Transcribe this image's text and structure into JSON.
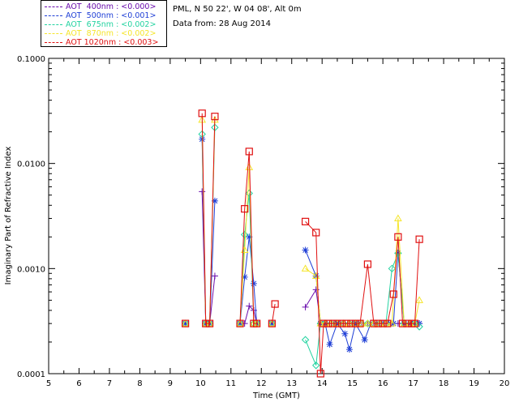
{
  "header": {
    "site": "PML, N 50 22', W 04 08', Alt 0m",
    "date": "Data from: 28 Aug 2014"
  },
  "legend": [
    {
      "label": "AOT  400nm : <0.000>",
      "color": "#6a0dad"
    },
    {
      "label": "AOT  500nm : <0.001>",
      "color": "#1f3fd6"
    },
    {
      "label": "AOT  675nm : <0.002>",
      "color": "#22d3a0"
    },
    {
      "label": "AOT  870nm : <0.002>",
      "color": "#f5e52a"
    },
    {
      "label": "AOT 1020nm : <0.003>",
      "color": "#e01010"
    }
  ],
  "chart_data": {
    "type": "line",
    "xlabel": "Time (GMT)",
    "ylabel": "Imaginary Part of Refractive Index",
    "xlim": [
      5,
      20
    ],
    "ylim": [
      0.0001,
      0.1
    ],
    "yscale": "log",
    "xticks": [
      "5",
      "6",
      "7",
      "8",
      "9",
      "10",
      "11",
      "12",
      "13",
      "14",
      "15",
      "16",
      "17",
      "18",
      "19",
      "20"
    ],
    "yticks": [
      {
        "value": 0.0001,
        "label": "0.0001"
      },
      {
        "value": 0.001,
        "label": "0.0010"
      },
      {
        "value": 0.01,
        "label": "0.0100"
      },
      {
        "value": 0.1,
        "label": "0.1000"
      }
    ],
    "grid": false,
    "series": [
      {
        "name": "AOT  400nm",
        "color": "#6a0dad",
        "marker": "plus",
        "segments": [
          [
            [
              9.5,
              0.0003
            ]
          ],
          [
            [
              10.05,
              0.0054
            ],
            [
              10.17,
              0.0003
            ],
            [
              10.3,
              0.0003
            ],
            [
              10.47,
              0.00085
            ]
          ],
          [
            [
              11.3,
              0.0003
            ],
            [
              11.45,
              0.0003
            ],
            [
              11.6,
              0.00044
            ],
            [
              11.75,
              0.0004
            ],
            [
              11.85,
              0.0003
            ]
          ],
          [
            [
              12.35,
              0.0003
            ]
          ],
          [
            [
              13.45,
              0.00043
            ],
            [
              13.8,
              0.00063
            ],
            [
              13.95,
              0.0003
            ],
            [
              14.1,
              0.0003
            ],
            [
              14.3,
              0.0003
            ],
            [
              14.5,
              0.0003
            ],
            [
              14.7,
              0.0003
            ],
            [
              14.9,
              0.0003
            ],
            [
              15.1,
              0.0003
            ],
            [
              15.3,
              0.0003
            ],
            [
              15.5,
              0.0003
            ],
            [
              15.7,
              0.0003
            ],
            [
              15.9,
              0.0003
            ],
            [
              16.1,
              0.0003
            ],
            [
              16.3,
              0.0003
            ],
            [
              16.5,
              0.0003
            ],
            [
              16.7,
              0.0003
            ],
            [
              16.9,
              0.0003
            ],
            [
              17.05,
              0.0003
            ],
            [
              17.2,
              0.0003
            ]
          ]
        ]
      },
      {
        "name": "AOT  500nm",
        "color": "#1f3fd6",
        "marker": "star",
        "segments": [
          [
            [
              9.5,
              0.0003
            ]
          ],
          [
            [
              10.05,
              0.017
            ],
            [
              10.17,
              0.0003
            ],
            [
              10.3,
              0.0003
            ],
            [
              10.47,
              0.0044
            ]
          ],
          [
            [
              11.3,
              0.0003
            ],
            [
              11.45,
              0.00083
            ],
            [
              11.6,
              0.002
            ],
            [
              11.75,
              0.00072
            ],
            [
              11.85,
              0.0003
            ]
          ],
          [
            [
              12.35,
              0.0003
            ]
          ],
          [
            [
              13.45,
              0.0015
            ],
            [
              13.8,
              0.00085
            ],
            [
              13.95,
              0.0003
            ],
            [
              14.1,
              0.0003
            ],
            [
              14.25,
              0.00019
            ],
            [
              14.5,
              0.0003
            ],
            [
              14.75,
              0.00024
            ],
            [
              14.9,
              0.00017
            ],
            [
              15.1,
              0.0003
            ],
            [
              15.4,
              0.00021
            ],
            [
              15.6,
              0.0003
            ],
            [
              15.8,
              0.0003
            ],
            [
              16,
              0.0003
            ],
            [
              16.2,
              0.0003
            ],
            [
              16.35,
              0.0003
            ],
            [
              16.5,
              0.0014
            ],
            [
              16.7,
              0.0003
            ],
            [
              16.9,
              0.0003
            ],
            [
              17.05,
              0.0003
            ],
            [
              17.2,
              0.0003
            ]
          ]
        ]
      },
      {
        "name": "AOT  675nm",
        "color": "#22d3a0",
        "marker": "diamond",
        "segments": [
          [
            [
              9.5,
              0.0003
            ]
          ],
          [
            [
              10.05,
              0.019
            ],
            [
              10.17,
              0.0003
            ],
            [
              10.3,
              0.0003
            ],
            [
              10.47,
              0.022
            ]
          ],
          [
            [
              11.3,
              0.0003
            ],
            [
              11.45,
              0.0021
            ],
            [
              11.6,
              0.0052
            ],
            [
              11.75,
              0.0003
            ],
            [
              11.85,
              0.0003
            ]
          ],
          [
            [
              12.35,
              0.0003
            ]
          ],
          [
            [
              13.45,
              0.00021
            ],
            [
              13.8,
              0.00012
            ],
            [
              13.95,
              0.0003
            ],
            [
              14.1,
              0.0003
            ],
            [
              14.3,
              0.0003
            ],
            [
              14.5,
              0.0003
            ],
            [
              14.7,
              0.0003
            ],
            [
              14.9,
              0.0003
            ],
            [
              15.1,
              0.0003
            ],
            [
              15.3,
              0.0003
            ],
            [
              15.5,
              0.0003
            ],
            [
              15.7,
              0.0003
            ],
            [
              15.9,
              0.0003
            ],
            [
              16.1,
              0.0003
            ],
            [
              16.3,
              0.001
            ],
            [
              16.5,
              0.0014
            ],
            [
              16.7,
              0.0003
            ],
            [
              16.9,
              0.0003
            ],
            [
              17.05,
              0.0003
            ],
            [
              17.2,
              0.00028
            ]
          ]
        ]
      },
      {
        "name": "AOT  870nm",
        "color": "#f5e52a",
        "marker": "triangle",
        "segments": [
          [
            [
              9.5,
              0.0003
            ]
          ],
          [
            [
              10.05,
              0.026
            ],
            [
              10.17,
              0.0003
            ],
            [
              10.3,
              0.0003
            ],
            [
              10.47,
              0.026
            ]
          ],
          [
            [
              11.3,
              0.0003
            ],
            [
              11.45,
              0.0015
            ],
            [
              11.6,
              0.0092
            ],
            [
              11.75,
              0.0003
            ],
            [
              11.85,
              0.0003
            ]
          ],
          [
            [
              12.35,
              0.0003
            ]
          ],
          [
            [
              13.45,
              0.001
            ],
            [
              13.8,
              0.00085
            ],
            [
              13.95,
              0.0003
            ],
            [
              14.1,
              0.0003
            ],
            [
              14.3,
              0.0003
            ],
            [
              14.5,
              0.0003
            ],
            [
              14.7,
              0.0003
            ],
            [
              14.9,
              0.0003
            ],
            [
              15.1,
              0.0003
            ],
            [
              15.3,
              0.0003
            ],
            [
              15.5,
              0.0003
            ],
            [
              15.7,
              0.0003
            ],
            [
              15.9,
              0.0003
            ],
            [
              16.1,
              0.0003
            ],
            [
              16.3,
              0.0003
            ],
            [
              16.5,
              0.003
            ],
            [
              16.7,
              0.0003
            ],
            [
              16.9,
              0.0003
            ],
            [
              17.05,
              0.0003
            ],
            [
              17.2,
              0.0005
            ]
          ]
        ]
      },
      {
        "name": "AOT 1020nm",
        "color": "#e01010",
        "marker": "square",
        "segments": [
          [
            [
              9.5,
              0.0003
            ]
          ],
          [
            [
              10.05,
              0.03
            ],
            [
              10.17,
              0.0003
            ],
            [
              10.3,
              0.0003
            ],
            [
              10.47,
              0.028
            ]
          ],
          [
            [
              11.3,
              0.0003
            ],
            [
              11.45,
              0.0037
            ],
            [
              11.6,
              0.013
            ],
            [
              11.75,
              0.0003
            ],
            [
              11.85,
              0.0003
            ]
          ],
          [
            [
              12.35,
              0.0003
            ],
            [
              12.45,
              0.00046
            ]
          ],
          [
            [
              13.45,
              0.0028
            ],
            [
              13.8,
              0.0022
            ],
            [
              13.95,
              0.0001
            ],
            [
              14.05,
              0.0003
            ],
            [
              14.2,
              0.0003
            ],
            [
              14.35,
              0.0003
            ],
            [
              14.5,
              0.0003
            ],
            [
              14.65,
              0.0003
            ],
            [
              14.8,
              0.0003
            ],
            [
              14.95,
              0.0003
            ],
            [
              15.1,
              0.0003
            ],
            [
              15.25,
              0.0003
            ],
            [
              15.5,
              0.0011
            ],
            [
              15.7,
              0.0003
            ],
            [
              15.85,
              0.0003
            ],
            [
              16,
              0.0003
            ],
            [
              16.15,
              0.0003
            ],
            [
              16.35,
              0.00057
            ],
            [
              16.5,
              0.002
            ],
            [
              16.65,
              0.0003
            ],
            [
              16.8,
              0.0003
            ],
            [
              16.95,
              0.0003
            ],
            [
              17.05,
              0.0003
            ],
            [
              17.2,
              0.0019
            ]
          ]
        ]
      }
    ]
  }
}
